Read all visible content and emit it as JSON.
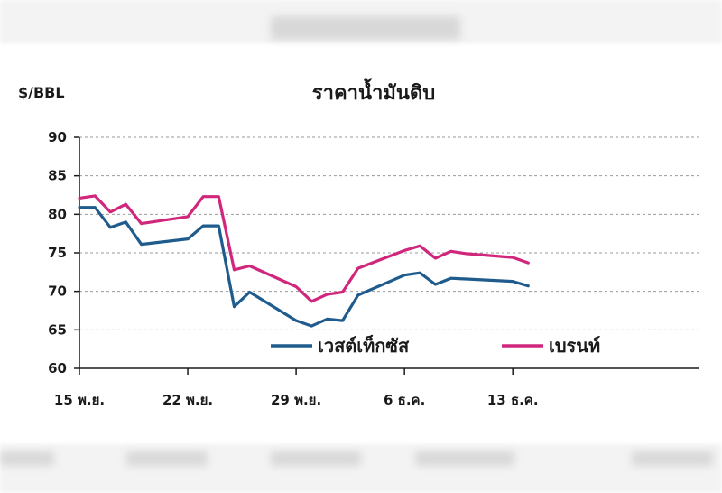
{
  "chart_data": {
    "type": "line",
    "title": "ราคาน้ำมันดิบ",
    "ylabel": "$/BBL",
    "xlabel": "",
    "ylim": [
      60,
      90
    ],
    "yticks": [
      90,
      85,
      80,
      75,
      70,
      65,
      60
    ],
    "x_tick_labels": [
      "15 พ.ย.",
      "22 พ.ย.",
      "29 พ.ย.",
      "6 ธ.ค.",
      "13 ธ.ค."
    ],
    "x_tick_index": [
      0,
      7,
      14,
      21,
      28
    ],
    "x_days": [
      0,
      1,
      2,
      3,
      4,
      7,
      8,
      9,
      10,
      11,
      14,
      15,
      16,
      17,
      18,
      21,
      22,
      23,
      24,
      25,
      28,
      29
    ],
    "grid": true,
    "legend_position": "bottom-right (inside plot)",
    "series": [
      {
        "name": "เวสต์เท็กซัส",
        "color": "#1f5b8c",
        "values": [
          80.9,
          80.9,
          78.3,
          79.0,
          76.1,
          76.8,
          78.5,
          78.5,
          68.0,
          69.9,
          66.2,
          65.5,
          66.4,
          66.2,
          69.5,
          72.1,
          72.4,
          70.9,
          71.7,
          71.6,
          71.3,
          70.7
        ]
      },
      {
        "name": "เบรนท์",
        "color": "#d0267c",
        "values": [
          82.1,
          82.4,
          80.3,
          81.3,
          78.8,
          79.7,
          82.3,
          82.3,
          72.8,
          73.3,
          70.6,
          68.7,
          69.6,
          69.9,
          73.0,
          75.3,
          75.9,
          74.3,
          75.2,
          74.9,
          74.4,
          73.7
        ]
      }
    ]
  },
  "colors": {
    "grid": "#9a9a9a",
    "axis": "#1a1a1a",
    "background_band": "#f3f3f3"
  }
}
